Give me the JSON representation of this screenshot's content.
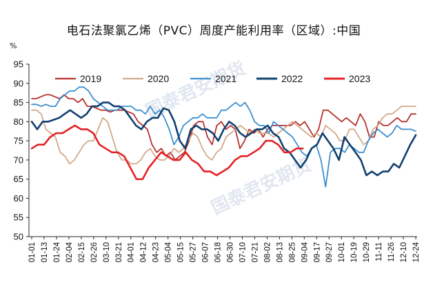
{
  "chart_data": {
    "type": "line",
    "title": "电石法聚氯乙烯（PVC）周度产能利用率（区域）:中国",
    "unit": "%",
    "ylim": [
      50,
      95
    ],
    "yticks": [
      50,
      55,
      60,
      65,
      70,
      75,
      80,
      85,
      90,
      95
    ],
    "x_tick_labels": [
      "01-01",
      "01-13",
      "01-24",
      "02-04",
      "02-15",
      "02-26",
      "03-10",
      "03-21",
      "04-01",
      "04-12",
      "04-23",
      "05-04",
      "05-15",
      "05-27",
      "06-07",
      "06-18",
      "06-30",
      "07-10",
      "07-21",
      "08-02",
      "08-13",
      "08-25",
      "09-04",
      "09-17",
      "09-27",
      "10-01",
      "10-19",
      "10-29",
      "11-11",
      "11-26",
      "12-10",
      "12-24"
    ],
    "legend_position": "top",
    "grid": false,
    "series": [
      {
        "name": "2019",
        "color": "#b5302b",
        "values": [
          86,
          86,
          86.5,
          87,
          87,
          86.5,
          86,
          87,
          86,
          86,
          85,
          86,
          84,
          84,
          83.5,
          83,
          83,
          82.5,
          83,
          83,
          83,
          82.5,
          82,
          80,
          79,
          78,
          74,
          72,
          73,
          71,
          72,
          70,
          71,
          72,
          75,
          79,
          80,
          80,
          76,
          74,
          79,
          80,
          78,
          79,
          78,
          73,
          75,
          78,
          77,
          78,
          76,
          78,
          79,
          79,
          79,
          79,
          79,
          80,
          79,
          80,
          78,
          76,
          78,
          83,
          83,
          82,
          81,
          80,
          81,
          80,
          79,
          82,
          80,
          76,
          76,
          80,
          79,
          79,
          80,
          81,
          80,
          80,
          82,
          82
        ]
      },
      {
        "name": "2020",
        "color": "#d2a98a",
        "values": [
          83,
          83,
          82,
          78,
          77,
          76,
          72,
          71,
          69,
          70,
          72,
          74,
          75,
          75,
          78,
          81,
          80,
          76,
          72,
          70,
          70,
          69,
          69,
          70,
          72,
          73,
          71,
          70,
          70,
          71,
          73,
          72,
          73,
          75,
          77,
          76,
          73,
          71,
          70,
          72,
          73,
          76,
          77,
          78,
          79,
          78,
          77,
          78,
          77,
          77,
          77,
          76,
          77,
          78,
          79,
          80,
          79,
          78,
          77,
          76,
          77,
          76,
          79,
          78,
          77,
          75,
          75,
          78,
          78,
          76,
          74,
          75,
          78,
          79,
          81,
          82,
          82,
          83,
          84,
          84,
          84,
          84
        ]
      },
      {
        "name": "2021",
        "color": "#3b8fd0",
        "values": [
          84.5,
          84.5,
          84,
          84.5,
          84,
          84,
          86,
          87,
          88,
          88,
          89,
          89,
          88,
          86,
          85,
          84,
          83,
          83,
          83,
          84,
          84,
          84,
          83,
          83,
          82,
          84,
          82,
          83,
          81,
          78,
          74,
          76,
          79,
          80,
          81,
          81,
          82,
          81,
          81,
          81,
          83,
          83,
          84,
          85,
          84,
          85,
          83,
          80,
          79,
          79,
          77,
          80,
          79,
          78,
          77,
          76,
          74,
          72,
          71,
          73,
          74,
          70,
          63,
          72,
          73,
          73,
          72,
          74,
          73,
          72,
          72,
          75,
          77,
          78,
          77,
          76,
          77,
          79,
          78,
          78,
          78,
          77.5
        ]
      },
      {
        "name": "2022",
        "color": "#0f3f6e",
        "values": [
          80,
          78,
          80,
          80,
          80.5,
          81,
          82,
          83,
          82,
          81,
          82,
          84,
          84,
          85,
          85,
          84,
          84,
          83,
          81,
          79,
          78,
          80,
          81,
          81,
          83.5,
          83,
          80,
          75,
          73,
          78,
          79,
          78,
          78,
          77,
          75,
          78,
          80,
          79,
          77,
          76,
          77,
          78,
          78,
          79,
          77,
          76,
          73,
          72,
          70,
          68,
          70,
          73,
          74,
          77,
          75,
          73,
          70,
          76,
          74,
          72,
          70,
          66,
          67,
          66,
          67,
          67,
          69,
          68,
          71,
          74,
          76.5
        ]
      },
      {
        "name": "2023",
        "color": "#e42025",
        "values": [
          73,
          74,
          74,
          76,
          77,
          77,
          78,
          79,
          78,
          78,
          77,
          74,
          73,
          72,
          72,
          71,
          68,
          65,
          65,
          68,
          70,
          72,
          71,
          70,
          70,
          72,
          70,
          69,
          67,
          67,
          66,
          67,
          68,
          70,
          71,
          71,
          72,
          73,
          75,
          75,
          74,
          72,
          72,
          73,
          73
        ]
      }
    ]
  },
  "watermarks": [
    "国泰君安期货",
    "GUOTAI JUNAN FUTURES"
  ]
}
